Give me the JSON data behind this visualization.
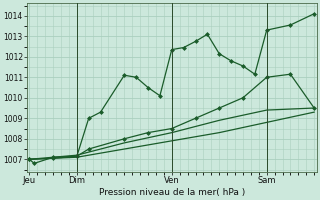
{
  "xlabel": "Pression niveau de la mer( hPa )",
  "bg_color": "#cce8dc",
  "grid_color": "#aacfbf",
  "line_color": "#1a5c2a",
  "ylim": [
    1006.4,
    1014.6
  ],
  "yticks": [
    1007,
    1008,
    1009,
    1010,
    1011,
    1012,
    1013,
    1014
  ],
  "xlim": [
    -0.05,
    6.05
  ],
  "day_labels": [
    "Jeu",
    "Dim",
    "Ven",
    "Sam"
  ],
  "day_positions": [
    0.0,
    1.0,
    3.0,
    5.0
  ],
  "vlines": [
    1.0,
    3.0,
    5.0
  ],
  "series1_x": [
    0.0,
    0.1,
    0.5,
    1.0,
    1.25,
    1.5,
    2.0,
    2.25,
    2.5,
    2.75,
    3.0,
    3.25,
    3.5,
    3.75,
    4.0,
    4.25,
    4.5,
    4.75,
    5.0,
    5.5,
    6.0
  ],
  "series1_y": [
    1007.0,
    1006.8,
    1007.1,
    1007.15,
    1009.0,
    1009.3,
    1011.1,
    1011.0,
    1010.5,
    1010.1,
    1012.35,
    1012.45,
    1012.75,
    1013.1,
    1012.15,
    1011.8,
    1011.55,
    1011.15,
    1013.3,
    1013.55,
    1014.1
  ],
  "series2_x": [
    0.0,
    0.5,
    1.0,
    1.25,
    2.0,
    2.5,
    3.0,
    3.5,
    4.0,
    4.5,
    5.0,
    5.5,
    6.0
  ],
  "series2_y": [
    1007.0,
    1007.05,
    1007.15,
    1007.5,
    1008.0,
    1008.3,
    1008.5,
    1009.0,
    1009.5,
    1010.0,
    1011.0,
    1011.15,
    1009.5
  ],
  "series3_x": [
    0.0,
    1.0,
    2.0,
    3.0,
    4.0,
    5.0,
    6.0
  ],
  "series3_y": [
    1007.0,
    1007.2,
    1007.8,
    1008.3,
    1008.9,
    1009.4,
    1009.5
  ],
  "series4_x": [
    0.0,
    1.0,
    2.0,
    3.0,
    4.0,
    5.0,
    6.0
  ],
  "series4_y": [
    1007.0,
    1007.1,
    1007.5,
    1007.9,
    1008.3,
    1008.8,
    1009.3
  ]
}
